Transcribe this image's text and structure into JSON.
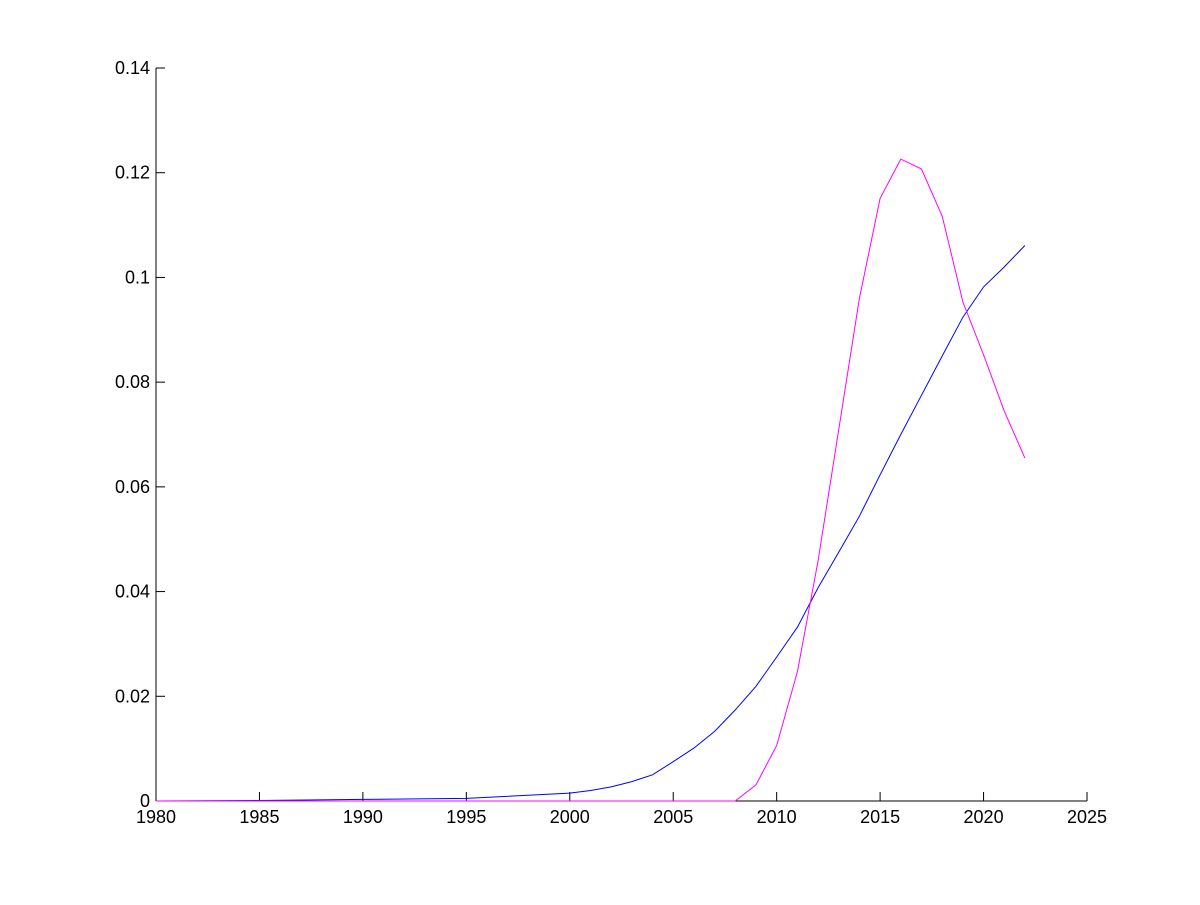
{
  "chart_data": {
    "type": "line",
    "title": "",
    "xlabel": "",
    "ylabel": "",
    "xlim": [
      1980,
      2025
    ],
    "ylim": [
      0,
      0.14
    ],
    "grid": false,
    "x_ticks": [
      "1980",
      "1985",
      "1990",
      "1995",
      "2000",
      "2005",
      "2010",
      "2015",
      "2020",
      "2025"
    ],
    "y_ticks": [
      "0",
      "0.02",
      "0.04",
      "0.06",
      "0.08",
      "0.1",
      "0.12",
      "0.14"
    ],
    "series": [
      {
        "color": "#0000ff",
        "x": [
          1980,
          1985,
          1990,
          1995,
          2000,
          2001,
          2002,
          2003,
          2004,
          2005,
          2006,
          2007,
          2008,
          2009,
          2010,
          2011,
          2012,
          2013,
          2014,
          2015,
          2016,
          2017,
          2018,
          2019,
          2020,
          2021,
          2022
        ],
        "y": [
          0,
          0.0001,
          0.0003,
          0.0005,
          0.0015,
          0.002,
          0.0027,
          0.0037,
          0.005,
          0.0075,
          0.0101,
          0.0133,
          0.0174,
          0.0219,
          0.0275,
          0.0332,
          0.0407,
          0.0475,
          0.0544,
          0.0623,
          0.07,
          0.0775,
          0.085,
          0.0924,
          0.0982,
          0.102,
          0.1061
        ]
      },
      {
        "color": "#ff00ff",
        "x": [
          1980,
          2008,
          2009,
          2010,
          2011,
          2012,
          2013,
          2014,
          2015,
          2016,
          2017,
          2018,
          2019,
          2020,
          2021,
          2022
        ],
        "y": [
          0,
          0,
          0.0031,
          0.0106,
          0.0247,
          0.0458,
          0.0709,
          0.096,
          0.1151,
          0.1226,
          0.1207,
          0.1117,
          0.0953,
          0.0852,
          0.0745,
          0.0655
        ]
      }
    ]
  }
}
